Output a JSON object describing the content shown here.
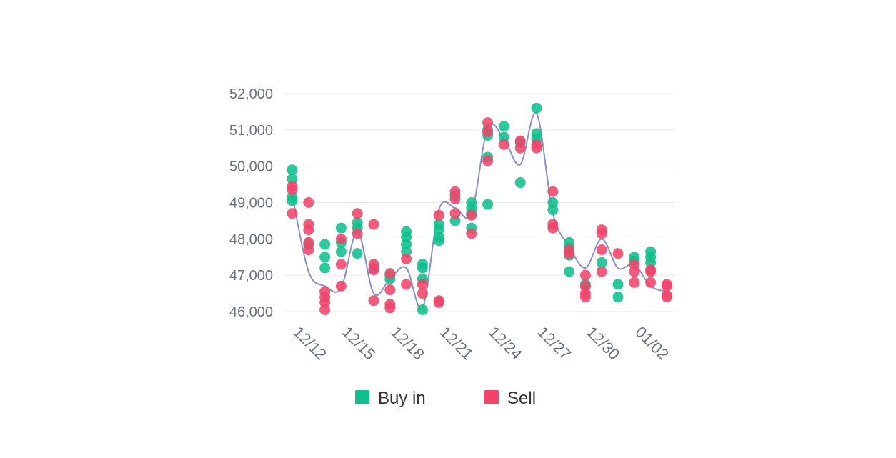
{
  "chart_data": {
    "type": "scatter",
    "ylim": [
      46000,
      52000
    ],
    "y_ticks": [
      "52,000",
      "51,000",
      "50,000",
      "49,000",
      "48,000",
      "47,000",
      "46,000"
    ],
    "y_tick_values": [
      52000,
      51000,
      50000,
      49000,
      48000,
      47000,
      46000
    ],
    "x_ticks": [
      "12/12",
      "12/15",
      "12/18",
      "12/21",
      "12/24",
      "12/27",
      "12/30",
      "01/02"
    ],
    "grid": true,
    "legend_position": "bottom",
    "colors": {
      "buy": "#0fbf8c",
      "sell": "#f0446a",
      "trend": "#8a90c4",
      "grid": "#e6e9ef"
    },
    "series": [
      {
        "name": "Buy in",
        "points": [
          [
            "12/12",
            49900
          ],
          [
            "12/12",
            49650
          ],
          [
            "12/12",
            49150
          ],
          [
            "12/12",
            49050
          ],
          [
            "12/13",
            47850
          ],
          [
            "12/14",
            47850
          ],
          [
            "12/14",
            47500
          ],
          [
            "12/14",
            47200
          ],
          [
            "12/15",
            48300
          ],
          [
            "12/15",
            47900
          ],
          [
            "12/15",
            47650
          ],
          [
            "12/16",
            48450
          ],
          [
            "12/16",
            48300
          ],
          [
            "12/16",
            47600
          ],
          [
            "12/17",
            47200
          ],
          [
            "12/18",
            47000
          ],
          [
            "12/18",
            46900
          ],
          [
            "12/19",
            48200
          ],
          [
            "12/19",
            48050
          ],
          [
            "12/19",
            47850
          ],
          [
            "12/19",
            47650
          ],
          [
            "12/20",
            47300
          ],
          [
            "12/20",
            47200
          ],
          [
            "12/20",
            46900
          ],
          [
            "12/20",
            46050
          ],
          [
            "12/21",
            48400
          ],
          [
            "12/21",
            48250
          ],
          [
            "12/21",
            48050
          ],
          [
            "12/21",
            47950
          ],
          [
            "12/22",
            49200
          ],
          [
            "12/22",
            48500
          ],
          [
            "12/23",
            49000
          ],
          [
            "12/23",
            48850
          ],
          [
            "12/23",
            48700
          ],
          [
            "12/23",
            48300
          ],
          [
            "12/24",
            51000
          ],
          [
            "12/24",
            50850
          ],
          [
            "12/24",
            50250
          ],
          [
            "12/24",
            48950
          ],
          [
            "12/25",
            51100
          ],
          [
            "12/25",
            50800
          ],
          [
            "12/26",
            50650
          ],
          [
            "12/26",
            49550
          ],
          [
            "12/27",
            51600
          ],
          [
            "12/27",
            50900
          ],
          [
            "12/27",
            50750
          ],
          [
            "12/28",
            49000
          ],
          [
            "12/28",
            48800
          ],
          [
            "12/29",
            47900
          ],
          [
            "12/29",
            47750
          ],
          [
            "12/29",
            47550
          ],
          [
            "12/29",
            47100
          ],
          [
            "12/30",
            46750
          ],
          [
            "12/31",
            47350
          ],
          [
            "01/01",
            46750
          ],
          [
            "01/01",
            46400
          ],
          [
            "01/02",
            47500
          ],
          [
            "01/02",
            47400
          ],
          [
            "01/03",
            47650
          ],
          [
            "01/03",
            47500
          ],
          [
            "01/03",
            47350
          ]
        ]
      },
      {
        "name": "Sell",
        "points": [
          [
            "12/12",
            49450
          ],
          [
            "12/12",
            49350
          ],
          [
            "12/12",
            48700
          ],
          [
            "12/13",
            49000
          ],
          [
            "12/13",
            48400
          ],
          [
            "12/13",
            48250
          ],
          [
            "12/13",
            47900
          ],
          [
            "12/13",
            47700
          ],
          [
            "12/14",
            46550
          ],
          [
            "12/14",
            46400
          ],
          [
            "12/14",
            46250
          ],
          [
            "12/14",
            46050
          ],
          [
            "12/15",
            48000
          ],
          [
            "12/15",
            47300
          ],
          [
            "12/15",
            46700
          ],
          [
            "12/16",
            48700
          ],
          [
            "12/16",
            48150
          ],
          [
            "12/17",
            48400
          ],
          [
            "12/17",
            47300
          ],
          [
            "12/17",
            47150
          ],
          [
            "12/17",
            46300
          ],
          [
            "12/18",
            47050
          ],
          [
            "12/18",
            46600
          ],
          [
            "12/18",
            46200
          ],
          [
            "12/18",
            46100
          ],
          [
            "12/19",
            47450
          ],
          [
            "12/19",
            46750
          ],
          [
            "12/20",
            46750
          ],
          [
            "12/20",
            46500
          ],
          [
            "12/21",
            48650
          ],
          [
            "12/21",
            46300
          ],
          [
            "12/21",
            46250
          ],
          [
            "12/22",
            49300
          ],
          [
            "12/22",
            49100
          ],
          [
            "12/22",
            48700
          ],
          [
            "12/23",
            48650
          ],
          [
            "12/23",
            48150
          ],
          [
            "12/24",
            51200
          ],
          [
            "12/24",
            50950
          ],
          [
            "12/24",
            50150
          ],
          [
            "12/25",
            50600
          ],
          [
            "12/26",
            50700
          ],
          [
            "12/26",
            50500
          ],
          [
            "12/27",
            50600
          ],
          [
            "12/27",
            50500
          ],
          [
            "12/28",
            49300
          ],
          [
            "12/28",
            48400
          ],
          [
            "12/28",
            48300
          ],
          [
            "12/29",
            47700
          ],
          [
            "12/29",
            47600
          ],
          [
            "12/30",
            47000
          ],
          [
            "12/30",
            46700
          ],
          [
            "12/30",
            46500
          ],
          [
            "12/30",
            46400
          ],
          [
            "12/31",
            48250
          ],
          [
            "12/31",
            48150
          ],
          [
            "12/31",
            47700
          ],
          [
            "12/31",
            47100
          ],
          [
            "01/01",
            47600
          ],
          [
            "01/02",
            47300
          ],
          [
            "01/02",
            47100
          ],
          [
            "01/02",
            46800
          ],
          [
            "01/03",
            47150
          ],
          [
            "01/03",
            47100
          ],
          [
            "01/03",
            46800
          ],
          [
            "01/04",
            46750
          ],
          [
            "01/04",
            46700
          ],
          [
            "01/04",
            46450
          ],
          [
            "01/04",
            46400
          ]
        ]
      }
    ],
    "trend": [
      [
        "12/12",
        49200
      ],
      [
        "12/13",
        47100
      ],
      [
        "12/14",
        46700
      ],
      [
        "12/15",
        46650
      ],
      [
        "12/16",
        48200
      ],
      [
        "12/17",
        46500
      ],
      [
        "12/18",
        46900
      ],
      [
        "12/19",
        47200
      ],
      [
        "12/20",
        46100
      ],
      [
        "12/21",
        48800
      ],
      [
        "12/22",
        48850
      ],
      [
        "12/23",
        48700
      ],
      [
        "12/24",
        51050
      ],
      [
        "12/25",
        50750
      ],
      [
        "12/26",
        50050
      ],
      [
        "12/27",
        51450
      ],
      [
        "12/28",
        48700
      ],
      [
        "12/29",
        47800
      ],
      [
        "12/30",
        47200
      ],
      [
        "12/31",
        48000
      ],
      [
        "01/01",
        47200
      ],
      [
        "01/02",
        47300
      ],
      [
        "01/03",
        46700
      ],
      [
        "01/04",
        46550
      ]
    ]
  }
}
